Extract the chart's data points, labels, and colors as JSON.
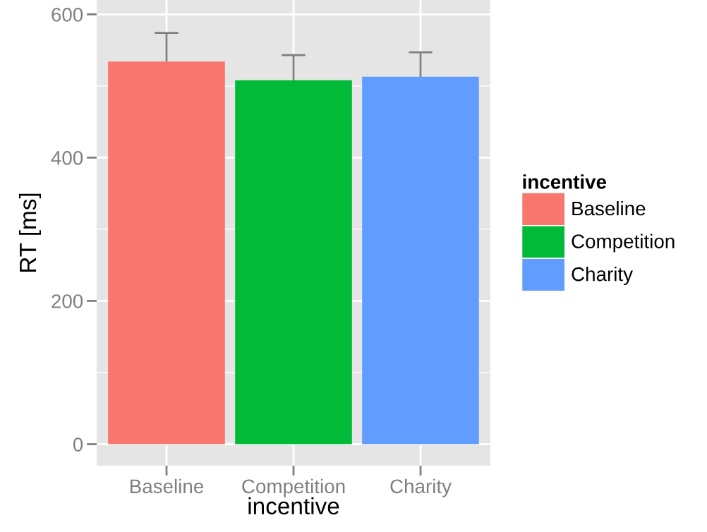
{
  "chart_data": {
    "type": "bar",
    "xlabel": "incentive",
    "ylabel": "RT [ms]",
    "legend_title": "incentive",
    "categories": [
      "Baseline",
      "Competition",
      "Charity"
    ],
    "series": [
      {
        "name": "Baseline",
        "color": "#f8766d",
        "values": [
          534,
          null,
          null
        ],
        "errors": [
          40,
          null,
          null
        ]
      },
      {
        "name": "Competition",
        "color": "#00ba38",
        "values": [
          null,
          508,
          null
        ],
        "errors": [
          null,
          35,
          null
        ]
      },
      {
        "name": "Charity",
        "color": "#619cff",
        "values": [
          null,
          null,
          513
        ],
        "errors": [
          null,
          null,
          34
        ]
      }
    ],
    "ylim": [
      -30,
      620
    ],
    "yticks": [
      0,
      200,
      400,
      600
    ],
    "grid": true,
    "legend": "right"
  }
}
